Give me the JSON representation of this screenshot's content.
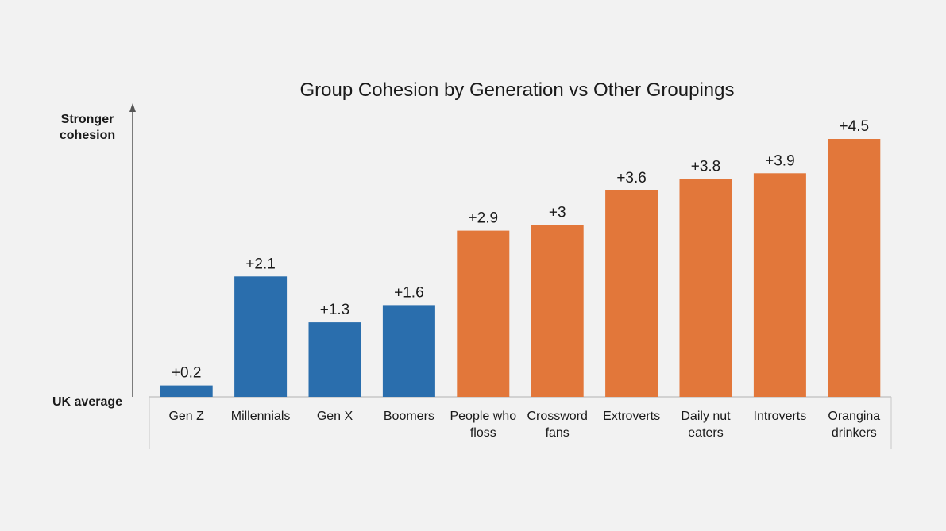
{
  "colors": {
    "background": "#f2f2f2",
    "generation": "#2a6ead",
    "other": "#e2773a",
    "axis": "#555555",
    "frame": "#c8c8c8"
  },
  "chart_data": {
    "type": "bar",
    "title": "Group Cohesion by Generation vs Other Groupings",
    "y_top_label": [
      "Stronger",
      "cohesion"
    ],
    "y_bottom_label": "UK average",
    "ylim": [
      0,
      4.5
    ],
    "categories": [
      [
        "Gen Z"
      ],
      [
        "Millennials"
      ],
      [
        "Gen X"
      ],
      [
        "Boomers"
      ],
      [
        "People who",
        "floss"
      ],
      [
        "Crossword",
        "fans"
      ],
      [
        "Extroverts"
      ],
      [
        "Daily nut",
        "eaters"
      ],
      [
        "Introverts"
      ],
      [
        "Orangina",
        "drinkers"
      ]
    ],
    "values": [
      0.2,
      2.1,
      1.3,
      1.6,
      2.9,
      3,
      3.6,
      3.8,
      3.9,
      4.5
    ],
    "value_labels": [
      "+0.2",
      "+2.1",
      "+1.3",
      "+1.6",
      "+2.9",
      "+3",
      "+3.6",
      "+3.8",
      "+3.9",
      "+4.5"
    ],
    "groups": [
      "generation",
      "generation",
      "generation",
      "generation",
      "other",
      "other",
      "other",
      "other",
      "other",
      "other"
    ],
    "grid": false,
    "legend": "none"
  }
}
